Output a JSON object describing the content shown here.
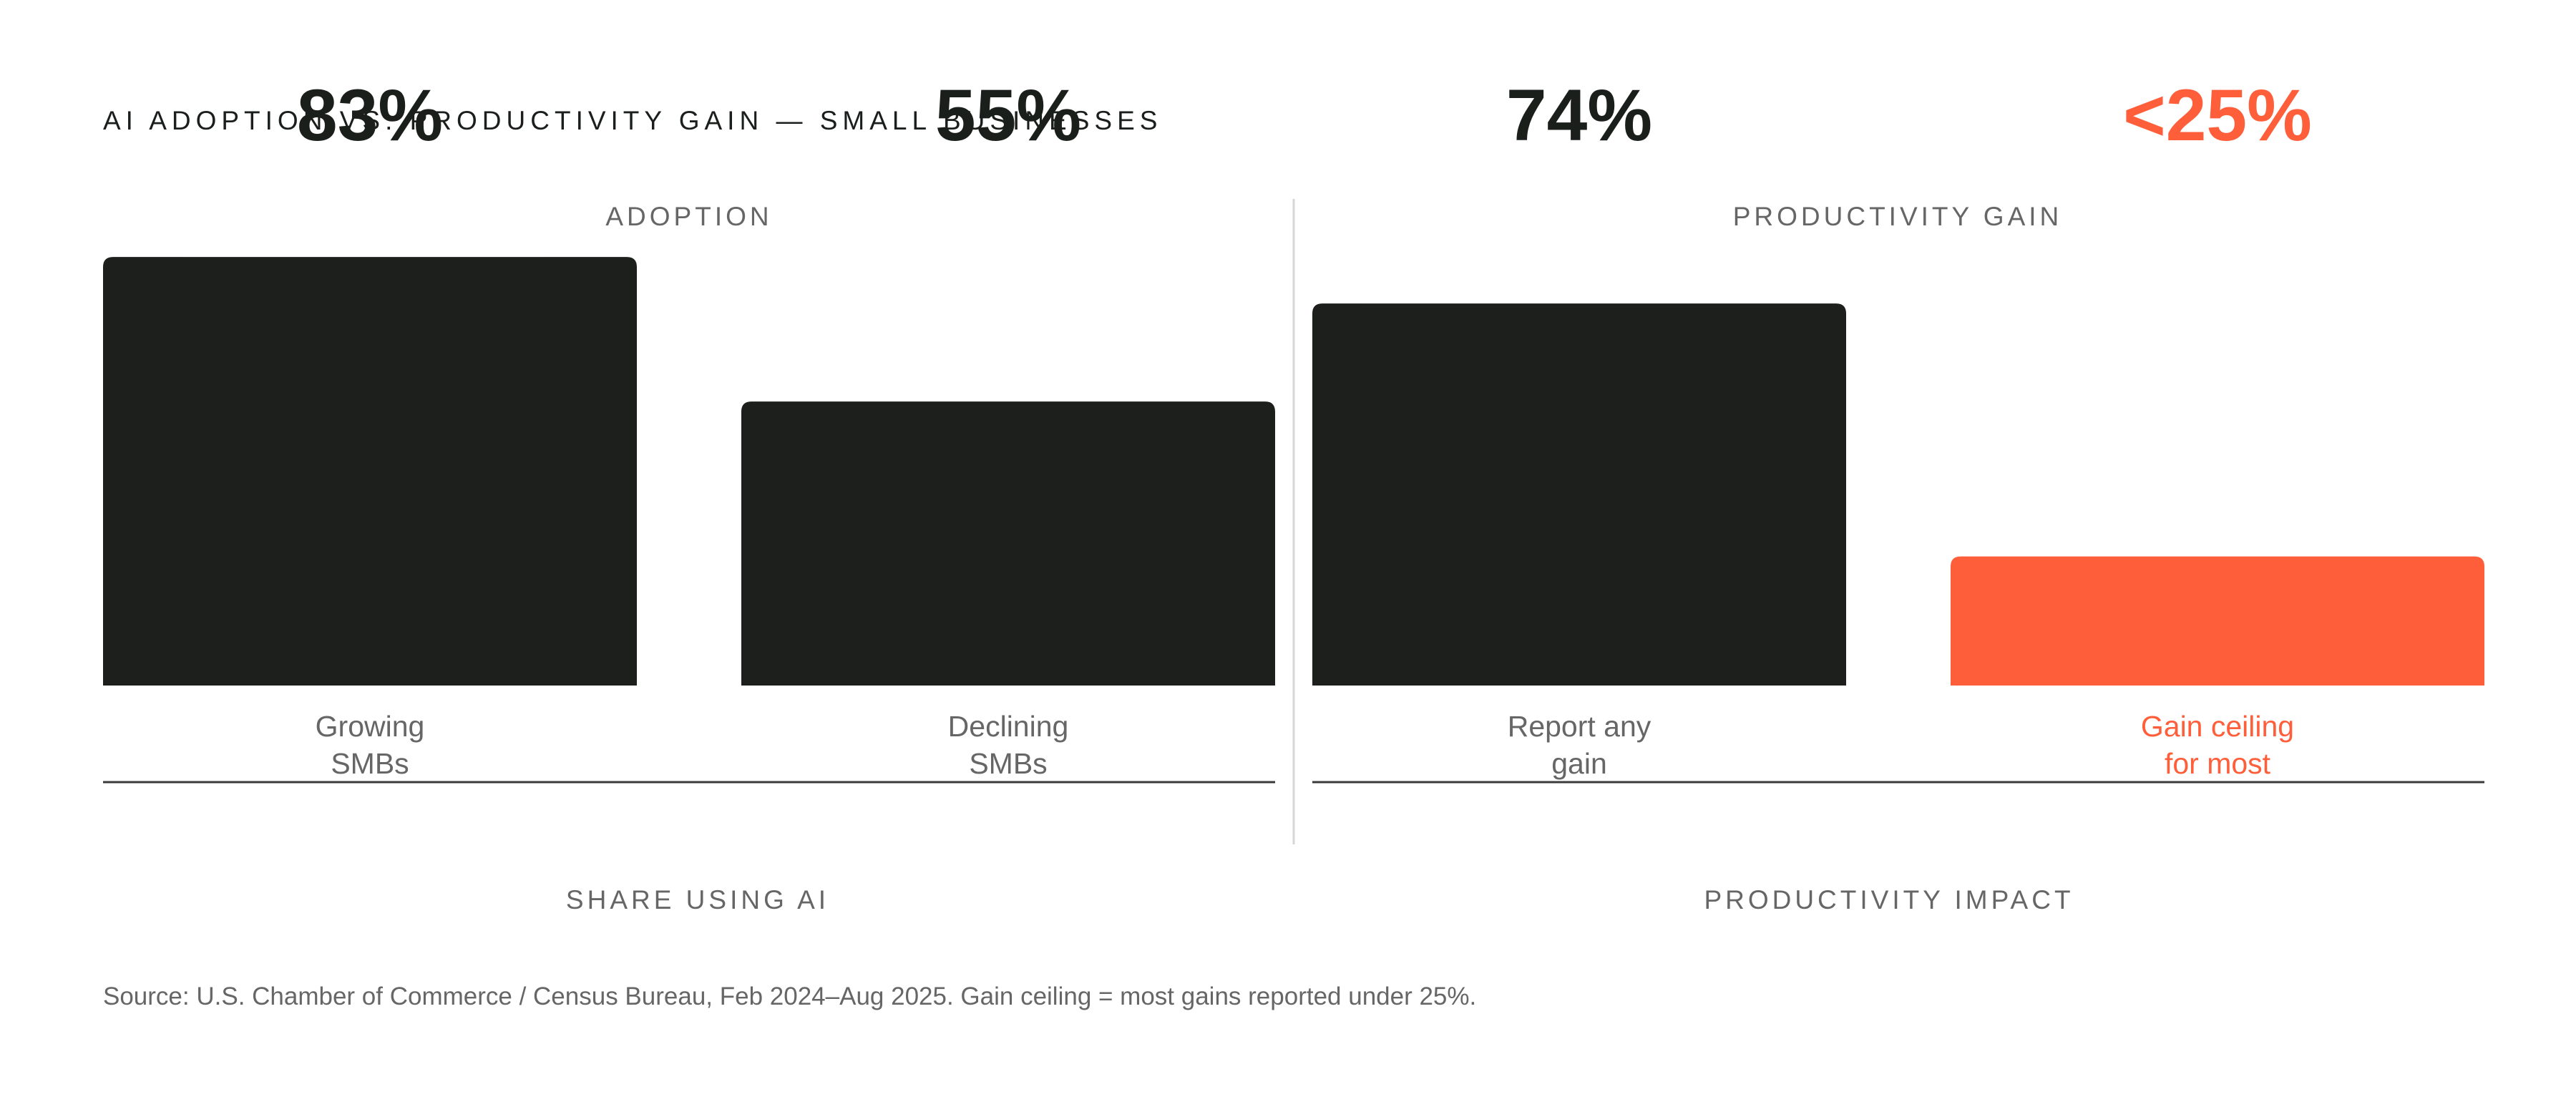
{
  "colors": {
    "bar_dark": "#1c1f1c",
    "accent": "#ff5e3a",
    "value_text": "#1b1f1c",
    "category_text": "#666666",
    "baseline": "#3a3a3a",
    "divider": "#d6d6d6"
  },
  "chart_data": {
    "type": "bar",
    "title": "AI ADOPTION VS. PRODUCTIVITY GAIN — SMALL BUSINESSES",
    "ylim": [
      0,
      100
    ],
    "grid": false,
    "legend": "none",
    "panels": [
      {
        "heading": "ADOPTION",
        "axis_label": "SHARE USING AI",
        "bars": [
          {
            "category": [
              "Growing",
              "SMBs"
            ],
            "value": 83,
            "value_label": "83%",
            "highlight": false
          },
          {
            "category": [
              "Declining",
              "SMBs"
            ],
            "value": 55,
            "value_label": "55%",
            "highlight": false
          }
        ]
      },
      {
        "heading": "PRODUCTIVITY GAIN",
        "axis_label": "PRODUCTIVITY IMPACT",
        "bars": [
          {
            "category": [
              "Report any",
              "gain"
            ],
            "value": 74,
            "value_label": "74%",
            "highlight": false
          },
          {
            "category": [
              "Gain ceiling",
              "for most"
            ],
            "value": 25,
            "value_label": "<25%",
            "highlight": true
          }
        ]
      }
    ],
    "source": "Source: U.S. Chamber of Commerce / Census Bureau, Feb 2024–Aug 2025. Gain ceiling = most gains reported under 25%."
  }
}
